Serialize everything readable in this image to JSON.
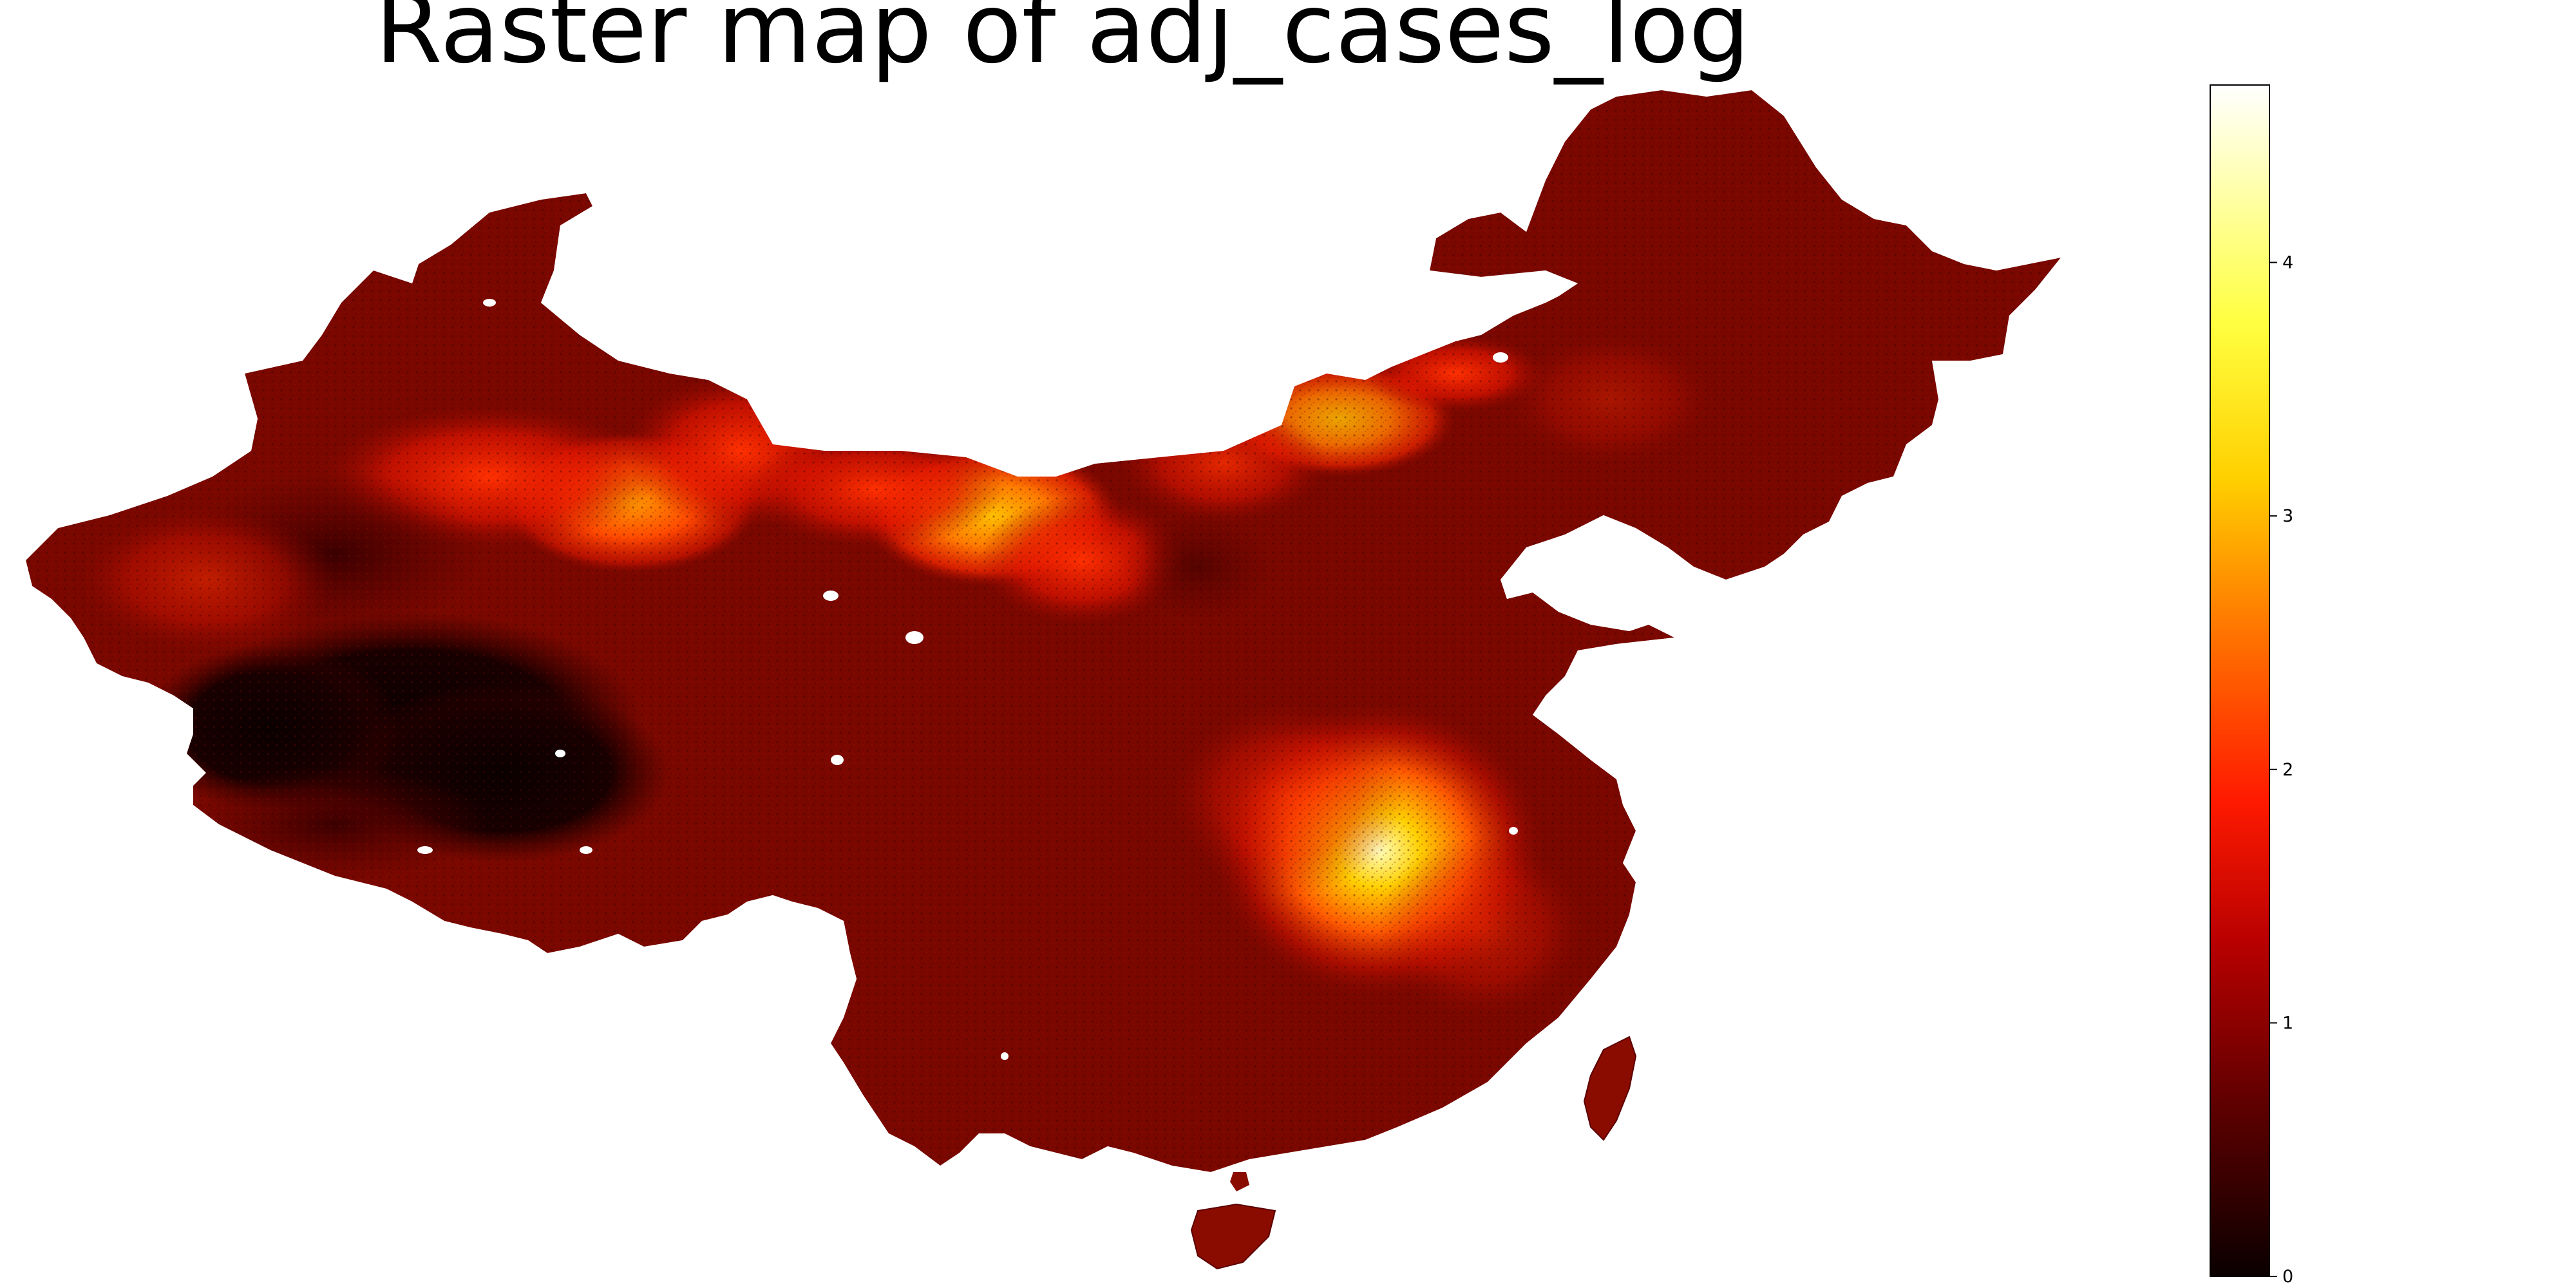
{
  "title": "Raster map of adj_cases_log",
  "colorbar": {
    "min": 0,
    "max": 4.7,
    "colormap": "hot",
    "ticks": [
      {
        "value": 0,
        "label": "0"
      },
      {
        "value": 1,
        "label": "1"
      },
      {
        "value": 2,
        "label": "2"
      },
      {
        "value": 3,
        "label": "3"
      },
      {
        "value": 4,
        "label": "4"
      }
    ],
    "colors": [
      "#0a0000",
      "#5c0000",
      "#b80000",
      "#ff1a00",
      "#ff7a00",
      "#ffd000",
      "#ffff40",
      "#ffffff"
    ]
  },
  "map": {
    "region": "China",
    "background_value_color": "#7a0a00",
    "hotspots": [
      {
        "name": "Hubei / Hunan region",
        "value": 4.5
      },
      {
        "name": "Inner Mongolia west",
        "value": 3.2
      },
      {
        "name": "Xinjiang east",
        "value": 2.8
      },
      {
        "name": "Inner Mongolia central",
        "value": 2.2
      },
      {
        "name": "Tibet",
        "value": 0.2
      }
    ]
  }
}
